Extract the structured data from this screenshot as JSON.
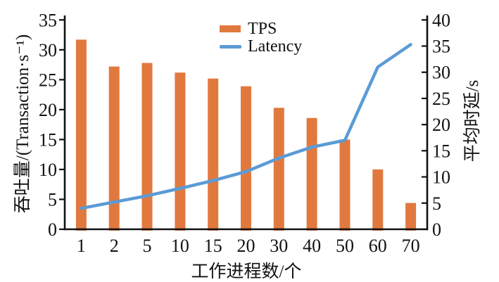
{
  "chart_data": {
    "type": "combo-bar-line",
    "title": "",
    "categories": [
      "1",
      "2",
      "5",
      "10",
      "15",
      "20",
      "30",
      "40",
      "50",
      "60",
      "70"
    ],
    "series": [
      {
        "name": "TPS",
        "type": "bar",
        "axis": "left",
        "color": "#E1793F",
        "values": [
          31.7,
          27.2,
          27.8,
          26.2,
          25.2,
          23.9,
          20.3,
          18.6,
          15.0,
          10.0,
          4.4
        ]
      },
      {
        "name": "Latency",
        "type": "line",
        "axis": "right",
        "color": "#5B9BD5",
        "values": [
          4.0,
          5.2,
          6.4,
          7.8,
          9.3,
          11.0,
          13.6,
          15.7,
          17.0,
          31.0,
          35.3
        ]
      }
    ],
    "left_axis": {
      "label": "吞吐量/(Transaction·s⁻¹)",
      "min": 0,
      "max": 35,
      "step": 5
    },
    "right_axis": {
      "label": "平均时延/s",
      "min": 0,
      "max": 40,
      "step": 5
    },
    "x_axis": {
      "label": "工作进程数/个"
    },
    "legend": {
      "position": "top-center",
      "entries": [
        "TPS",
        "Latency"
      ]
    },
    "grid": false,
    "axis_color": "#111111",
    "background": "#FFFFFF"
  }
}
